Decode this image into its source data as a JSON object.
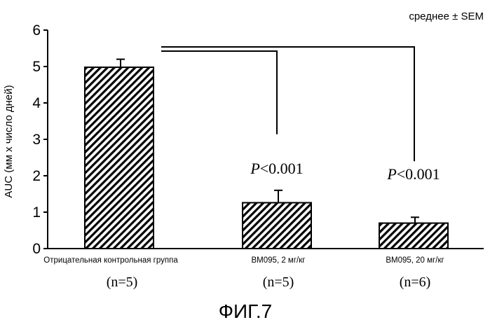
{
  "chart_data": {
    "type": "bar",
    "title": "",
    "xlabel": "",
    "ylabel": "AUC (мм х число дней)",
    "ylim": [
      0,
      6
    ],
    "yticks": [
      "0",
      "1",
      "2",
      "3",
      "4",
      "5",
      "6"
    ],
    "categories": [
      "Отрицательная контрольная группа",
      "BM095, 2 мг/кг",
      "BM095, 20 мг/кг"
    ],
    "group_sizes": [
      "(n=5)",
      "(n=5)",
      "(n=6)"
    ],
    "values": [
      4.98,
      1.26,
      0.7
    ],
    "errors": [
      0.22,
      0.34,
      0.16
    ],
    "error_note": "среднее ± SEM",
    "comparisons": [
      {
        "from": 0,
        "to": 1,
        "label": "P<0.001",
        "p_letter": "P",
        "p_rest": "<0.001"
      },
      {
        "from": 0,
        "to": 2,
        "label": "P<0.001",
        "p_letter": "P",
        "p_rest": "<0.001"
      }
    ],
    "grid": false,
    "bar_fill": "diagonal-hatch"
  },
  "figure": {
    "caption": "ФИГ.7"
  },
  "colors": {
    "ink": "#000000",
    "background": "#ffffff"
  }
}
